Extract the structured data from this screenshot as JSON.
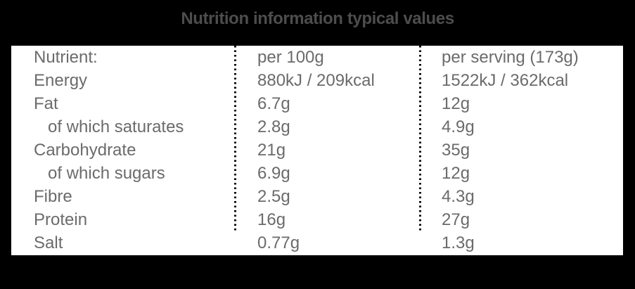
{
  "title": "Nutrition information typical values",
  "colors": {
    "background": "#000000",
    "panel": "#ffffff",
    "title_text": "#4d4d4d",
    "body_text": "#6b6b6b",
    "divider_dots": "#000000"
  },
  "table": {
    "columns": [
      "Nutrient:",
      "per 100g",
      "per serving (173g)"
    ],
    "rows": [
      {
        "name": "Nutrient:",
        "per100g": "per 100g",
        "perServing": "per serving (173g)"
      },
      {
        "name": "Energy",
        "per100g": "880kJ / 209kcal",
        "perServing": "1522kJ / 362kcal"
      },
      {
        "name": "Fat",
        "per100g": "6.7g",
        "perServing": "12g"
      },
      {
        "name": "of which saturates",
        "per100g": "2.8g",
        "perServing": "4.9g"
      },
      {
        "name": "Carbohydrate",
        "per100g": "21g",
        "perServing": "35g"
      },
      {
        "name": "of which sugars",
        "per100g": "6.9g",
        "perServing": "12g"
      },
      {
        "name": "Fibre",
        "per100g": "2.5g",
        "perServing": "4.3g"
      },
      {
        "name": "Protein",
        "per100g": "16g",
        "perServing": "27g"
      },
      {
        "name": "Salt",
        "per100g": "0.77g",
        "perServing": "1.3g"
      }
    ]
  }
}
